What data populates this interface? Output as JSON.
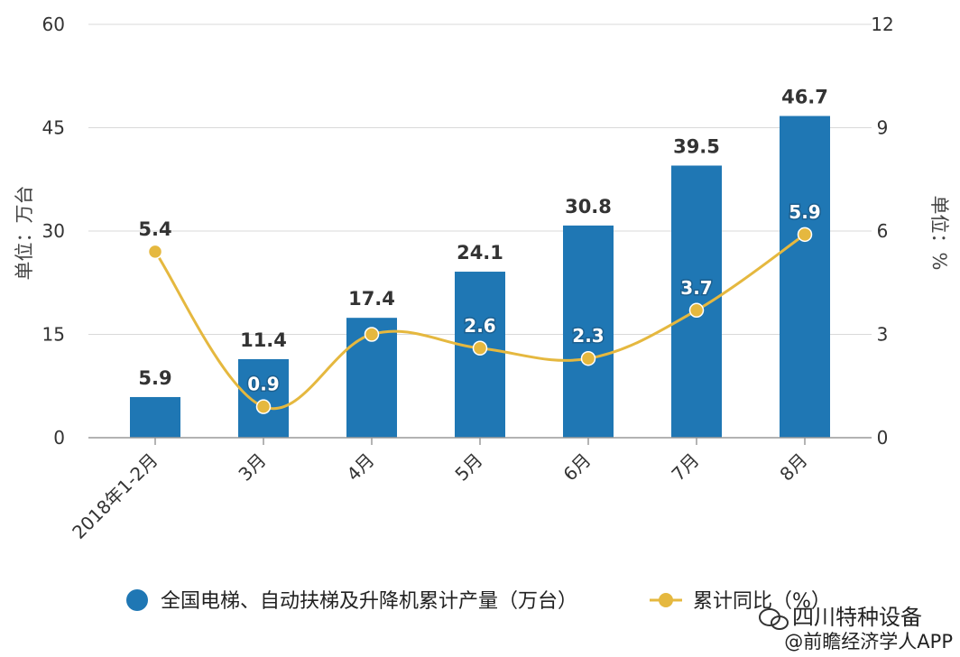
{
  "chart_data": {
    "type": "bar",
    "categories": [
      "2018年1-2月",
      "3月",
      "4月",
      "5月",
      "6月",
      "7月",
      "8月"
    ],
    "series": [
      {
        "name": "全国电梯、自动扶梯及升降机累计产量（万台）",
        "type": "bar",
        "axis": "left",
        "color": "#1f77b4",
        "values": [
          5.9,
          11.4,
          17.4,
          24.1,
          30.8,
          39.5,
          46.7
        ]
      },
      {
        "name": "累计同比（%）",
        "type": "line",
        "axis": "right",
        "color": "#e5b83f",
        "values": [
          5.4,
          0.9,
          3.0,
          2.6,
          2.3,
          3.7,
          5.9
        ],
        "labels": [
          "5.4",
          "0.9",
          "",
          "2.6",
          "2.3",
          "3.7",
          "5.9"
        ]
      }
    ],
    "left_axis": {
      "label": "单位：万台",
      "ylim": [
        0,
        60
      ],
      "ticks": [
        "0",
        "15",
        "30",
        "45",
        "60"
      ]
    },
    "right_axis": {
      "label": "单位：%",
      "ylim": [
        0,
        12
      ],
      "ticks": [
        "0",
        "3",
        "6",
        "9",
        "12"
      ]
    },
    "grid": true,
    "legend_position": "bottom"
  },
  "watermark": {
    "account": "四川特种设备",
    "source": "@前瞻经济学人APP"
  }
}
